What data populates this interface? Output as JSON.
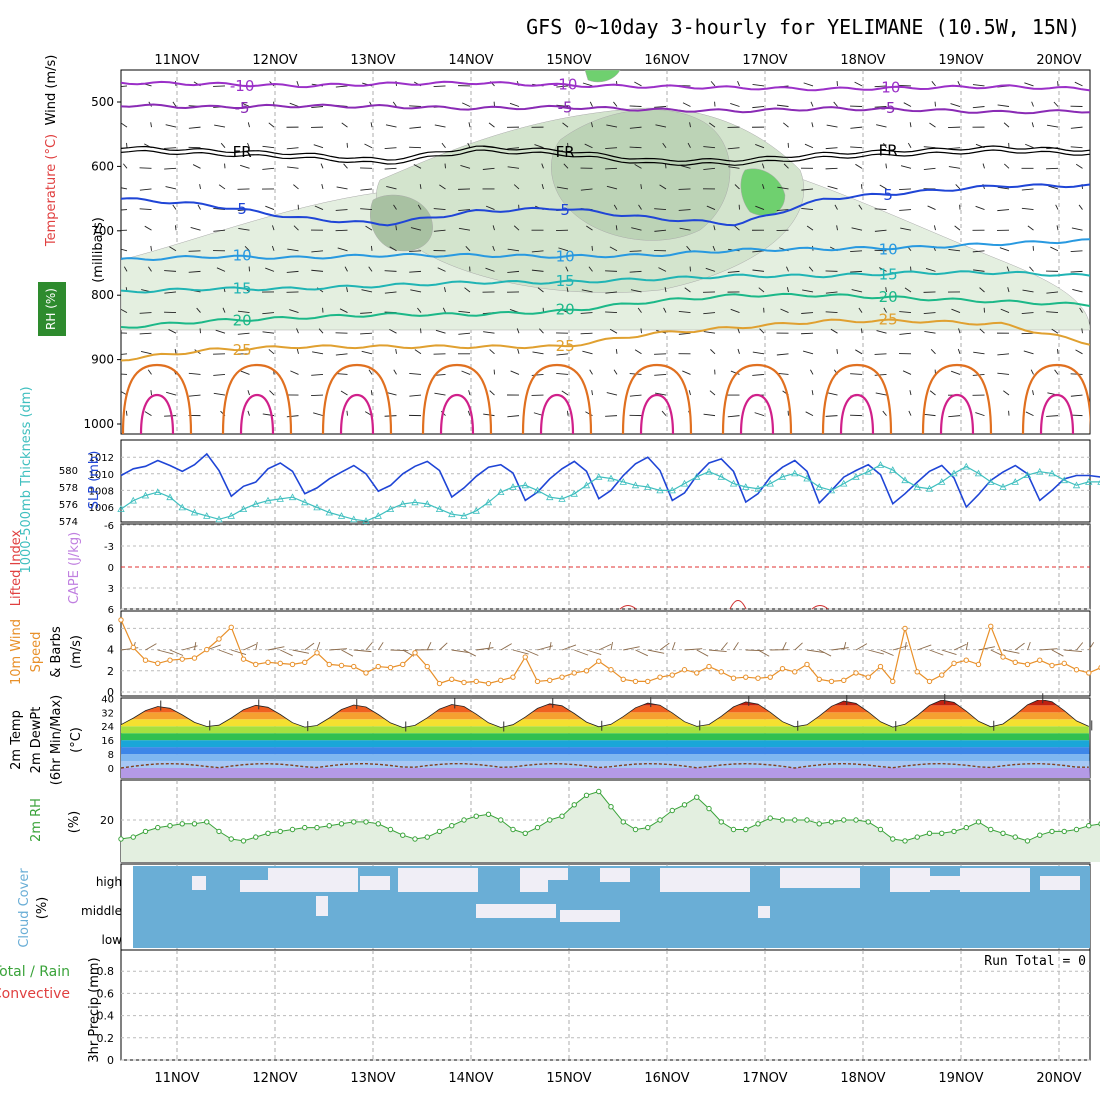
{
  "chart_data": {
    "type": "meteogram",
    "title": "GFS 0~10day 3-hourly for YELIMANE (10.5W, 15N)",
    "x_axis": {
      "categories": [
        "11NOV",
        "12NOV",
        "13NOV",
        "14NOV",
        "15NOV",
        "16NOV",
        "17NOV",
        "18NOV",
        "19NOV",
        "20NOV"
      ],
      "step_hours": 3
    },
    "panels": [
      {
        "id": "upper_air",
        "ylabels": [
          "Wind (m/s)",
          "Temperature (°C)",
          "RH (%)",
          "(millibars)"
        ],
        "yticks": [
          500,
          600,
          700,
          800,
          900,
          1000
        ],
        "ylim": [
          1000,
          450
        ],
        "temperature_contours": [
          {
            "value": -10,
            "label": "-10",
            "color": "#9b30c8",
            "pressure": [
              470,
              472,
              475,
              472,
              470,
              474,
              476,
              478,
              480,
              478,
              476,
              480
            ]
          },
          {
            "value": -5,
            "label": "-5",
            "color": "#8a2bb5",
            "pressure": [
              505,
              508,
              506,
              507,
              510,
              508,
              512,
              514,
              510,
              512,
              516,
              514
            ]
          },
          {
            "value": 0,
            "label": "FR",
            "color": "#000000",
            "pressure": [
              570,
              575,
              580,
              590,
              570,
              575,
              590,
              590,
              580,
              575,
              570,
              575
            ]
          },
          {
            "value": 5,
            "label": "5",
            "color": "#1f45d6",
            "pressure": [
              650,
              660,
              680,
              690,
              670,
              665,
              680,
              690,
              650,
              640,
              630,
              630
            ]
          },
          {
            "value": 10,
            "label": "10",
            "color": "#2899e0",
            "pressure": [
              745,
              740,
              742,
              738,
              738,
              740,
              738,
              730,
              728,
              726,
              720,
              715
            ]
          },
          {
            "value": 15,
            "label": "15",
            "color": "#20b4b4",
            "pressure": [
              795,
              790,
              790,
              785,
              780,
              780,
              775,
              770,
              770,
              765,
              765,
              770
            ]
          },
          {
            "value": 20,
            "label": "20",
            "color": "#1cb888",
            "pressure": [
              850,
              840,
              835,
              830,
              830,
              825,
              810,
              800,
              800,
              805,
              810,
              815
            ]
          },
          {
            "value": 25,
            "label": "25",
            "color": "#e0a030",
            "pressure": [
              900,
              885,
              880,
              880,
              880,
              880,
              860,
              850,
              840,
              840,
              845,
              875
            ]
          }
        ],
        "rh_shading": [
          "10",
          "30",
          "50",
          "70",
          "90"
        ]
      },
      {
        "id": "thickness_slp",
        "ylabels": [
          "1000-500mb Thickness (dm)",
          "SLP (mb)"
        ],
        "thickness_ticks": [
          574,
          576,
          578,
          580
        ],
        "slp_ticks": [
          1006,
          1008,
          1010,
          1012
        ],
        "series": [
          {
            "name": "SLP (mb)",
            "color": "#1f45d6",
            "values": [
              1009.8,
              1010.6,
              1010.9,
              1011.6,
              1011.0,
              1010.3,
              1011.1,
              1012.4,
              1010.4,
              1007.3,
              1008.5,
              1009.0,
              1010.6,
              1011.3,
              1010.3,
              1007.6,
              1008.3,
              1009.4,
              1010.2,
              1011.0,
              1010.0,
              1007.9,
              1008.6,
              1010.0,
              1010.9,
              1011.5,
              1010.4,
              1007.2,
              1008.3,
              1009.7,
              1010.8,
              1011.1,
              1010.1,
              1006.8,
              1007.8,
              1009.4,
              1010.6,
              1011.5,
              1010.3,
              1007.0,
              1008.0,
              1009.8,
              1011.2,
              1012.0,
              1010.4,
              1006.8,
              1007.7,
              1009.8,
              1011.3,
              1011.8,
              1010.3,
              1006.6,
              1007.6,
              1009.6,
              1010.8,
              1011.6,
              1010.3,
              1006.5,
              1008.0,
              1009.6,
              1010.4,
              1011.1,
              1009.9,
              1006.4,
              1007.6,
              1009.0,
              1010.3,
              1011.0,
              1009.5,
              1006.0,
              1007.5,
              1009.2,
              1010.2,
              1011.0,
              1010.0,
              1006.8,
              1008.0,
              1009.4,
              1009.8,
              1009.8,
              1009.6
            ]
          },
          {
            "name": "1000-500mb Thickness (dm)",
            "color": "#3fbfbf",
            "values": [
              575.4,
              576.4,
              577.0,
              577.4,
              576.8,
              575.6,
              575.0,
              574.6,
              574.2,
              574.6,
              575.4,
              576.0,
              576.4,
              576.6,
              576.8,
              576.2,
              575.6,
              575.0,
              574.6,
              574.2,
              574.0,
              574.6,
              575.4,
              576.0,
              576.2,
              576.0,
              575.4,
              574.8,
              574.6,
              575.2,
              576.2,
              577.4,
              578.0,
              578.2,
              577.6,
              576.8,
              576.6,
              577.2,
              578.2,
              579.2,
              579.0,
              578.6,
              578.2,
              578.0,
              577.6,
              577.6,
              578.4,
              579.2,
              579.8,
              579.2,
              578.4,
              578.0,
              577.8,
              578.4,
              579.2,
              579.6,
              579.0,
              578.0,
              577.6,
              578.4,
              579.2,
              579.8,
              580.6,
              580.0,
              578.8,
              578.0,
              577.8,
              578.6,
              579.6,
              580.4,
              579.6,
              578.6,
              578.0,
              578.6,
              579.4,
              579.8,
              579.6,
              578.8,
              578.2,
              578.6,
              578.6
            ]
          }
        ]
      },
      {
        "id": "cape_li",
        "ylabels": [
          "Lifted Index",
          "CAPE (J/kg)"
        ],
        "yticks": [
          -6,
          -3,
          0,
          3,
          6
        ],
        "zero_line_color": "#e03030"
      },
      {
        "id": "wind10m",
        "ylabels": [
          "10m Wind",
          "Speed",
          "& Barbs",
          "(m/s)"
        ],
        "yticks": [
          0,
          2,
          4,
          6
        ],
        "series": [
          {
            "name": "10m Wind Speed (m/s)",
            "color": "#e8902a",
            "values": [
              6.8,
              4.2,
              3.0,
              2.7,
              3.0,
              3.1,
              3.2,
              4.0,
              5.0,
              6.1,
              3.1,
              2.6,
              2.8,
              2.7,
              2.6,
              2.8,
              3.7,
              2.6,
              2.5,
              2.4,
              1.8,
              2.4,
              2.3,
              2.6,
              3.7,
              2.4,
              0.8,
              1.2,
              0.9,
              1.0,
              0.8,
              1.1,
              1.4,
              3.3,
              1.0,
              1.1,
              1.4,
              1.8,
              2.0,
              2.9,
              2.1,
              1.2,
              1.0,
              1.0,
              1.4,
              1.6,
              2.1,
              1.8,
              2.4,
              1.9,
              1.3,
              1.4,
              1.3,
              1.4,
              2.2,
              1.9,
              2.6,
              1.2,
              1.0,
              1.1,
              1.8,
              1.4,
              2.4,
              1.0,
              6.0,
              1.9,
              1.0,
              1.6,
              2.7,
              3.0,
              2.6,
              6.2,
              3.3,
              2.8,
              2.6,
              3.0,
              2.5,
              2.7,
              2.1,
              1.8,
              2.3
            ]
          }
        ]
      },
      {
        "id": "temp2m",
        "ylabels": [
          "2m Temp",
          "2m DewPt",
          "(6hr Min/Max)",
          "(°C)"
        ],
        "yticks": [
          0,
          8,
          16,
          24,
          32,
          40
        ],
        "temp_max_per_day": [
          35.4,
          36.1,
          36.3,
          36.6,
          37.0,
          37.4,
          38.1,
          38.6,
          39.2,
          39.6
        ],
        "temp_min_per_day": [
          23.8,
          23.4,
          23.2,
          23.2,
          23.6,
          23.8,
          23.6,
          23.4,
          23.6,
          23.8
        ],
        "dewpoint_color": "#804020",
        "dewpoint_band": [
          0,
          2.5
        ]
      },
      {
        "id": "rh2m",
        "ylabels": [
          "2m RH",
          "(%)"
        ],
        "yticks": [
          20
        ],
        "series": [
          {
            "name": "2m RH (%)",
            "color": "#3aa33a",
            "values": [
              10,
              11,
              14,
              16,
              17,
              18,
              18,
              19,
              14,
              10,
              9,
              11,
              13,
              14,
              15,
              16,
              16,
              17,
              18,
              19,
              19,
              18,
              15,
              12,
              10,
              11,
              14,
              17,
              20,
              22,
              23,
              20,
              15,
              13,
              16,
              20,
              22,
              28,
              33,
              35,
              27,
              19,
              15,
              16,
              20,
              25,
              28,
              32,
              26,
              19,
              15,
              15,
              18,
              21,
              20,
              20,
              20,
              18,
              19,
              20,
              20,
              19,
              15,
              10,
              9,
              11,
              13,
              13,
              14,
              16,
              19,
              15,
              13,
              11,
              9,
              12,
              14,
              14,
              15,
              17,
              18
            ]
          }
        ]
      },
      {
        "id": "cloud_cover",
        "ylabels": [
          "Cloud Cover",
          "(%)"
        ],
        "layers": [
          "high",
          "middle",
          "low"
        ],
        "cloud_color": "#6aaed6",
        "clear_color": "#f0eef6"
      },
      {
        "id": "precip",
        "ylabels": [
          "Total / Rain",
          "Convective",
          "3hr Precip (mm)"
        ],
        "yticks": [
          0,
          0.2,
          0.4,
          0.6,
          0.8
        ],
        "ylim": [
          0,
          1.0
        ],
        "values": [],
        "run_total_text": "Run Total = 0"
      }
    ]
  }
}
